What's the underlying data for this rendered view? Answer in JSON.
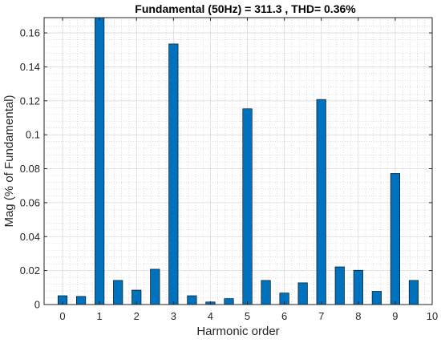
{
  "chart_data": {
    "type": "bar",
    "title": "Fundamental (50Hz) = 311.3 , THD= 0.36%",
    "xlabel": "Harmonic order",
    "ylabel": "Mag (% of Fundamental)",
    "x": [
      0,
      0.5,
      1,
      1.5,
      2,
      2.5,
      3,
      3.5,
      4,
      4.5,
      5,
      5.5,
      6,
      6.5,
      7,
      7.5,
      8,
      8.5,
      9,
      9.5
    ],
    "values": [
      0.0052,
      0.0048,
      0.169,
      0.0142,
      0.0085,
      0.0208,
      0.1535,
      0.0052,
      0.0015,
      0.0035,
      0.1153,
      0.0142,
      0.0068,
      0.0128,
      0.1208,
      0.0222,
      0.0202,
      0.0078,
      0.0772,
      0.0142
    ],
    "xlim": [
      -0.5,
      10
    ],
    "ylim": [
      0,
      0.169
    ],
    "xticks": [
      "0",
      "1",
      "2",
      "3",
      "4",
      "5",
      "6",
      "7",
      "8",
      "9",
      "10"
    ],
    "xtick_values": [
      0,
      1,
      2,
      3,
      4,
      5,
      6,
      7,
      8,
      9,
      10
    ],
    "yticks": [
      "0",
      "0.02",
      "0.04",
      "0.06",
      "0.08",
      "0.1",
      "0.12",
      "0.14",
      "0.16"
    ],
    "ytick_values": [
      0,
      0.02,
      0.04,
      0.06,
      0.08,
      0.1,
      0.12,
      0.14,
      0.16
    ],
    "grid": true,
    "minor_grid": true,
    "bar_color": "#0072BD",
    "bar_edge_color": "#000000"
  }
}
